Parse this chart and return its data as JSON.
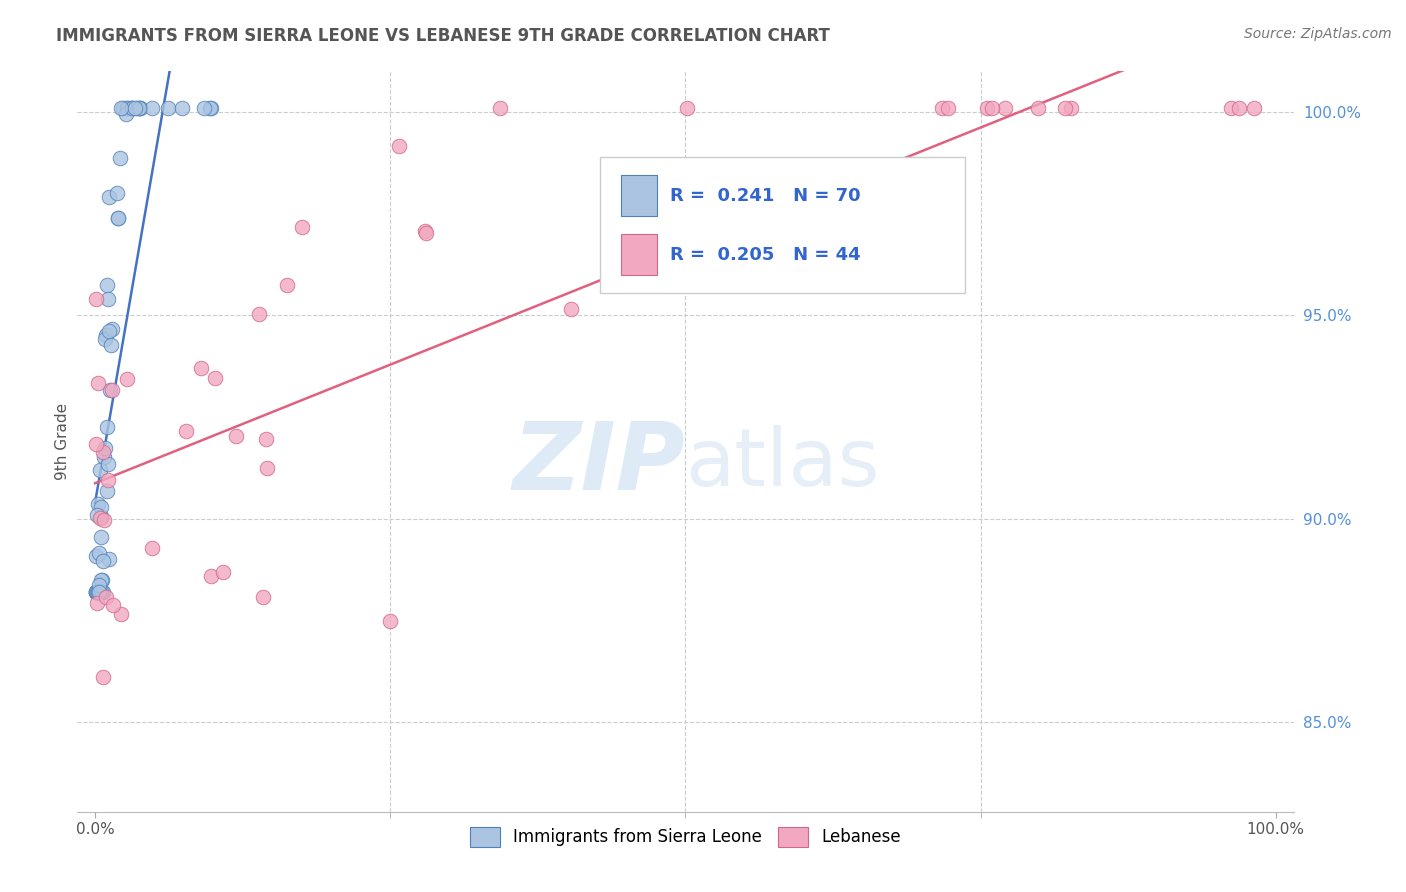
{
  "title": "IMMIGRANTS FROM SIERRA LEONE VS LEBANESE 9TH GRADE CORRELATION CHART",
  "source_text": "Source: ZipAtlas.com",
  "ylabel": "9th Grade",
  "R1": 0.241,
  "N1": 70,
  "R2": 0.205,
  "N2": 44,
  "color1": "#aac4e2",
  "color2": "#f2a8c0",
  "line_color1": "#4472c4",
  "line_color2": "#e06080",
  "marker_edge_color1": "#5080b8",
  "marker_edge_color2": "#d06888",
  "watermark_zip": "ZIP",
  "watermark_atlas": "atlas",
  "background_color": "#ffffff",
  "grid_color": "#cccccc",
  "ytick_color": "#5590d8",
  "legend_text_color": "#333333",
  "legend_value_color": "#3366cc"
}
